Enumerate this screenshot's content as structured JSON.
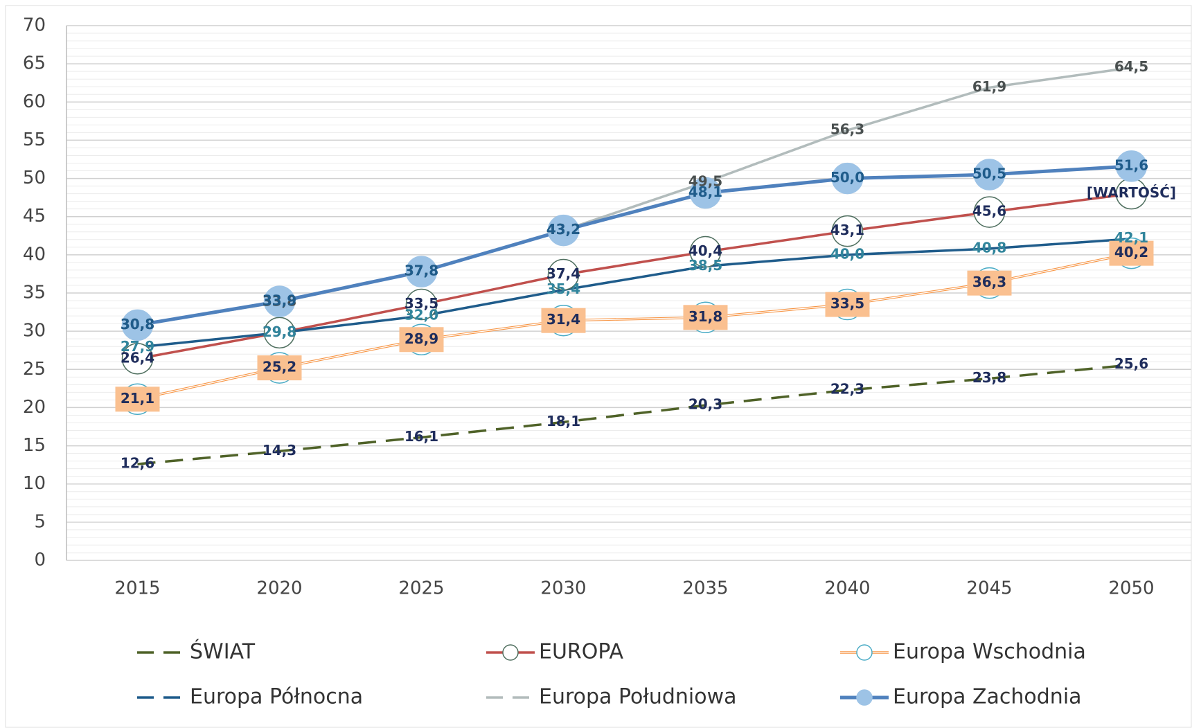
{
  "chart_data": {
    "type": "line",
    "categories": [
      "2015",
      "2020",
      "2025",
      "2030",
      "2035",
      "2040",
      "2045",
      "2050"
    ],
    "ylim": [
      0,
      70
    ],
    "yticks": [
      0,
      5,
      10,
      15,
      20,
      25,
      30,
      35,
      40,
      45,
      50,
      55,
      60,
      65,
      70
    ],
    "grid": true,
    "minor_grid": true,
    "series": [
      {
        "name": "ŚWIAT",
        "color": "#4f6228",
        "dash": true,
        "marker": "none",
        "label_color": "#1f2d5c",
        "values": [
          12.6,
          14.3,
          16.1,
          18.1,
          20.3,
          22.3,
          23.8,
          25.6
        ],
        "value_labels": [
          "12,6",
          "14,3",
          "16,1",
          "18,1",
          "20,3",
          "22,3",
          "23,8",
          "25,6"
        ]
      },
      {
        "name": "EUROPA",
        "color": "#c0504d",
        "dash": false,
        "marker": "open-circle",
        "marker_color": "#4f6f5f",
        "label_color": "#1f2d5c",
        "values": [
          26.4,
          29.8,
          33.5,
          37.4,
          40.4,
          43.1,
          45.6,
          48.0
        ],
        "value_labels": [
          "26,4",
          "29,8",
          "33,5",
          "37,4",
          "40,4",
          "43,1",
          "45,6",
          "[WARTOŚĆ]"
        ]
      },
      {
        "name": "Europa Wschodnia",
        "color": "#f79646",
        "dash": false,
        "double": true,
        "marker": "open-circle",
        "marker_color": "#4bacc6",
        "label_color": "#1f2d5c",
        "label_box": "#fac090",
        "values": [
          21.1,
          25.2,
          28.9,
          31.4,
          31.8,
          33.5,
          36.3,
          40.2
        ],
        "value_labels": [
          "21,1",
          "25,2",
          "28,9",
          "31,4",
          "31,8",
          "33,5",
          "36,3",
          "40,2"
        ]
      },
      {
        "name": "Europa Północna",
        "color": "#1f5c8b",
        "dash": false,
        "legend_dash": true,
        "marker": "none",
        "label_color": "#31859c",
        "values": [
          27.9,
          29.8,
          32.0,
          35.4,
          38.5,
          40.0,
          40.8,
          42.1
        ],
        "value_labels": [
          "27,9",
          "29,8",
          "32,0",
          "35,4",
          "38,5",
          "40,0",
          "40,8",
          "42,1"
        ]
      },
      {
        "name": "Europa Południowa",
        "color": "#b2bcbc",
        "dash": false,
        "legend_dash": true,
        "marker": "none",
        "label_color": "#4a5050",
        "values": [
          30.8,
          33.8,
          37.8,
          43.2,
          49.5,
          56.3,
          61.9,
          64.5
        ],
        "value_labels": [
          "30,8",
          "33,8",
          "37,8",
          "43,2",
          "49,5",
          "56,3",
          "61,9",
          "64,5"
        ]
      },
      {
        "name": "Europa Zachodnia",
        "color": "#4f81bd",
        "dash": false,
        "marker": "filled-circle",
        "marker_color": "#9dc3e6",
        "label_color": "#1f5c8b",
        "width": 5,
        "values": [
          30.8,
          33.9,
          37.8,
          43.2,
          48.1,
          50.0,
          50.5,
          51.6
        ],
        "value_labels": [
          "30,8",
          "33,9",
          "37,8",
          "43,2",
          "48,1",
          "50,0",
          "50,5",
          "51,6"
        ]
      }
    ]
  }
}
